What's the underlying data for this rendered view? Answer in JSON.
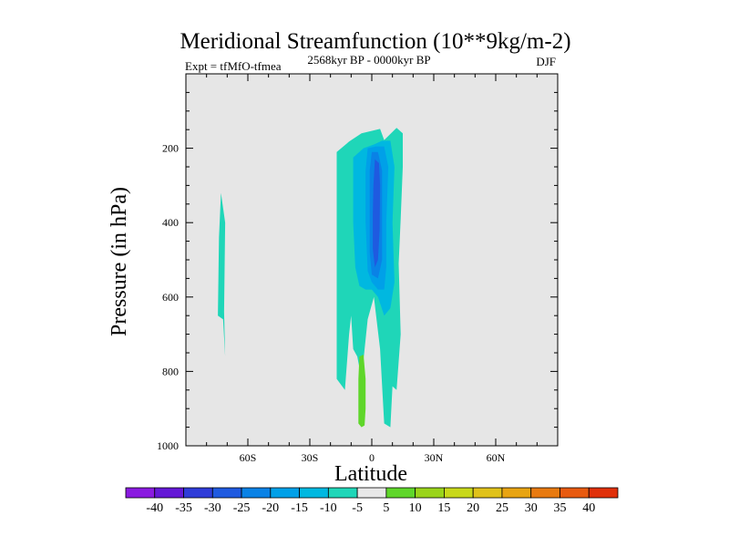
{
  "chart_data": {
    "type": "contour",
    "title": "Meridional Streamfunction (10**9kg/m-2)",
    "subtitle_left": "Expt = tfMfO-tfmea",
    "subtitle_center": "2568kyr BP - 0000kyr BP",
    "subtitle_right": "DJF",
    "xlabel": "Latitude",
    "ylabel": "Pressure (in hPa)",
    "xlim": [
      -90,
      90
    ],
    "ylim": [
      1000,
      0
    ],
    "x_ticks": [
      {
        "value": -60,
        "label": "60S"
      },
      {
        "value": -30,
        "label": "30S"
      },
      {
        "value": 0,
        "label": "0"
      },
      {
        "value": 30,
        "label": "30N"
      },
      {
        "value": 60,
        "label": "60N"
      }
    ],
    "y_ticks": [
      {
        "value": 200,
        "label": "200"
      },
      {
        "value": 400,
        "label": "400"
      },
      {
        "value": 600,
        "label": "600"
      },
      {
        "value": 800,
        "label": "800"
      },
      {
        "value": 1000,
        "label": "1000"
      }
    ],
    "background_color": "#e6e6e6",
    "regions": [
      {
        "name": "sh-high-lat-cell",
        "level": -10,
        "color": "#1fd6b8",
        "points": [
          [
            -74,
            440
          ],
          [
            -73,
            320
          ],
          [
            -71,
            400
          ],
          [
            -71.5,
            640
          ],
          [
            -71,
            760
          ],
          [
            -72,
            660
          ],
          [
            -74.5,
            650
          ]
        ]
      },
      {
        "name": "tropical-outer",
        "level": -10,
        "color": "#1fd6b8",
        "points": [
          [
            -17,
            210
          ],
          [
            -11,
            182
          ],
          [
            -5,
            160
          ],
          [
            4,
            148
          ],
          [
            6,
            178
          ],
          [
            12,
            145
          ],
          [
            15,
            160
          ],
          [
            15,
            250
          ],
          [
            14,
            390
          ],
          [
            13,
            510
          ],
          [
            14,
            700
          ],
          [
            12,
            850
          ],
          [
            10,
            840
          ],
          [
            9,
            950
          ],
          [
            6,
            940
          ],
          [
            4,
            740
          ],
          [
            1,
            600
          ],
          [
            -2,
            660
          ],
          [
            -5,
            820
          ],
          [
            -7,
            760
          ],
          [
            -9,
            740
          ],
          [
            -10,
            650
          ],
          [
            -11,
            700
          ],
          [
            -13,
            850
          ],
          [
            -17,
            820
          ]
        ]
      },
      {
        "name": "tropical-core-15",
        "level": -15,
        "color": "#00b8e0",
        "points": [
          [
            -9,
            225
          ],
          [
            -4,
            200
          ],
          [
            1,
            190
          ],
          [
            5,
            180
          ],
          [
            9,
            180
          ],
          [
            11,
            250
          ],
          [
            10,
            400
          ],
          [
            11,
            560
          ],
          [
            9,
            630
          ],
          [
            6,
            650
          ],
          [
            3,
            600
          ],
          [
            0,
            580
          ],
          [
            -3,
            580
          ],
          [
            -6,
            570
          ],
          [
            -8,
            520
          ],
          [
            -9,
            400
          ]
        ]
      },
      {
        "name": "tropical-core-20",
        "level": -20,
        "color": "#00a0e8",
        "points": [
          [
            -2,
            200
          ],
          [
            2,
            195
          ],
          [
            6,
            195
          ],
          [
            8,
            250
          ],
          [
            7,
            400
          ],
          [
            7,
            520
          ],
          [
            6,
            580
          ],
          [
            3,
            580
          ],
          [
            0,
            560
          ],
          [
            -2,
            530
          ],
          [
            -3,
            400
          ],
          [
            -3,
            260
          ]
        ]
      },
      {
        "name": "tropical-core-25",
        "level": -25,
        "color": "#0a82e6",
        "points": [
          [
            0,
            210
          ],
          [
            3,
            210
          ],
          [
            5,
            260
          ],
          [
            5,
            380
          ],
          [
            5,
            500
          ],
          [
            3,
            550
          ],
          [
            0,
            540
          ],
          [
            -1,
            480
          ],
          [
            -1,
            380
          ],
          [
            -1,
            260
          ]
        ]
      },
      {
        "name": "tropical-core-30",
        "level": -30,
        "color": "#1f5ae0",
        "points": [
          [
            1.5,
            230
          ],
          [
            3.5,
            240
          ],
          [
            4,
            300
          ],
          [
            3.8,
            420
          ],
          [
            3,
            500
          ],
          [
            1.5,
            520
          ],
          [
            0.5,
            470
          ],
          [
            0.5,
            380
          ],
          [
            0.8,
            300
          ]
        ]
      },
      {
        "name": "sh-lower-positive",
        "level": 5,
        "color": "#5fd62a",
        "points": [
          [
            -6,
            760
          ],
          [
            -4,
            755
          ],
          [
            -3,
            820
          ],
          [
            -3,
            900
          ],
          [
            -3.5,
            945
          ],
          [
            -5,
            950
          ],
          [
            -6.5,
            940
          ],
          [
            -6.5,
            820
          ]
        ]
      }
    ],
    "colorbar": {
      "levels": [
        "-40",
        "-35",
        "-30",
        "-25",
        "-20",
        "-15",
        "-10",
        "-5",
        "5",
        "10",
        "15",
        "20",
        "25",
        "30",
        "35",
        "40"
      ],
      "colors": [
        "#8a1ae0",
        "#6418d6",
        "#2f3cd8",
        "#1f5ae0",
        "#0a82e6",
        "#00a0e8",
        "#00b8e0",
        "#1fd6b8",
        "#e8e8e8",
        "#5fd62a",
        "#9ad41a",
        "#c8d81a",
        "#e0c21a",
        "#e8a412",
        "#e87a10",
        "#e85a10",
        "#e0300a"
      ]
    }
  }
}
